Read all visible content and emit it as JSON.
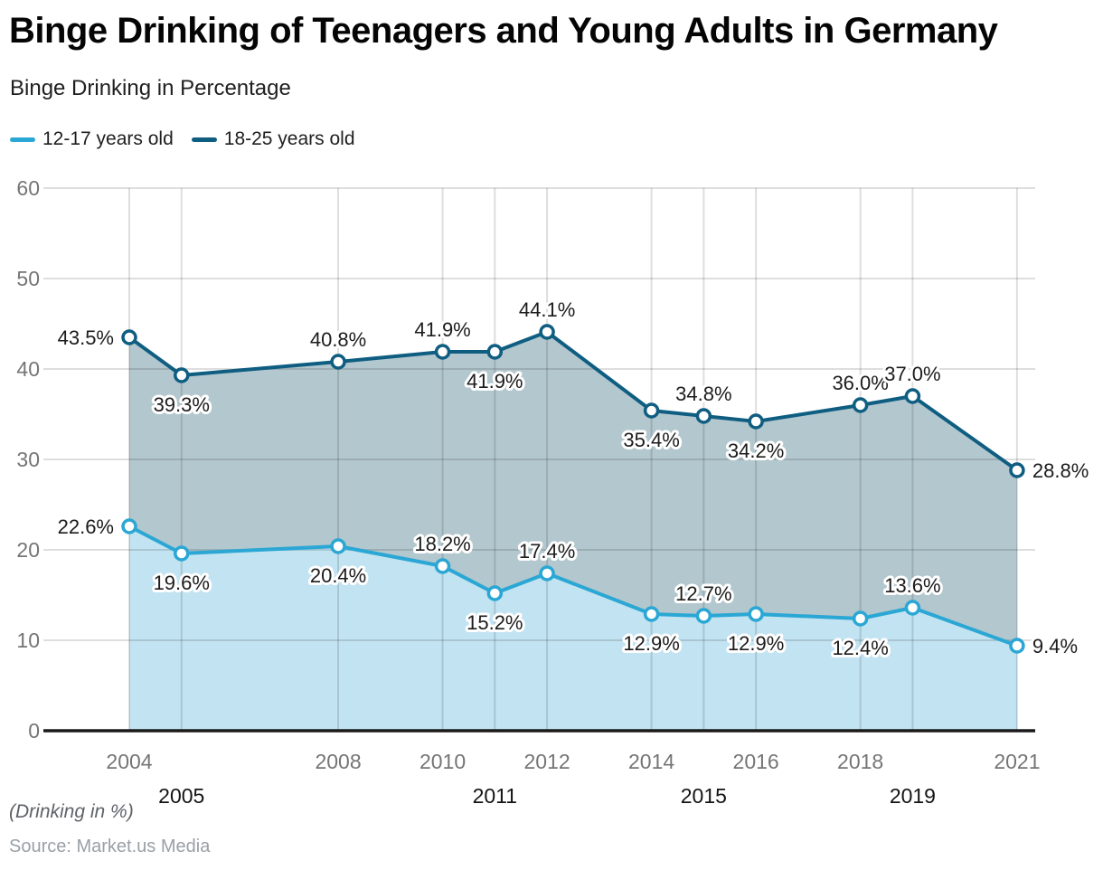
{
  "title": "Binge Drinking of Teenagers and Young Adults in Germany",
  "subtitle": "Binge Drinking in Percentage",
  "legend": [
    {
      "label": "12-17 years old",
      "color": "#2aa7d4"
    },
    {
      "label": "18-25 years old",
      "color": "#0f5e82"
    }
  ],
  "footnote": "(Drinking in %)",
  "source": "Source: Market.us Media",
  "colors": {
    "accent_light": "#2aa7d4",
    "accent_dark": "#0f5e82",
    "fill_light": "#c2e3f1",
    "fill_dark": "#b3c7ce",
    "grid": "rgba(0,0,0,0.13)",
    "axis": "#1a1a1a",
    "tick_gray": "#757575",
    "tick_black": "#141414",
    "data_label": "#1c1c1c"
  },
  "chart_data": {
    "type": "area",
    "title": "Binge Drinking of Teenagers and Young Adults in Germany",
    "xlabel": "",
    "ylabel": "Binge Drinking in Percentage",
    "x": [
      2004,
      2005,
      2008,
      2010,
      2011,
      2012,
      2014,
      2015,
      2016,
      2018,
      2019,
      2021
    ],
    "x_tick_rows": [
      1,
      2,
      1,
      1,
      2,
      1,
      1,
      2,
      1,
      1,
      2,
      1
    ],
    "yticks": [
      0,
      10,
      20,
      30,
      40,
      50,
      60
    ],
    "ylim": [
      0,
      60
    ],
    "grid": true,
    "legend_position": "top-left",
    "series": [
      {
        "name": "18-25 years old",
        "color": "#0f5e82",
        "fill": "#b3c7ce",
        "values": [
          43.5,
          39.3,
          40.8,
          41.9,
          41.9,
          44.1,
          35.4,
          34.8,
          34.2,
          36.0,
          37.0,
          28.8
        ],
        "labels": [
          "43.5%",
          "39.3%",
          "40.8%",
          "41.9%",
          "41.9%",
          "44.1%",
          "35.4%",
          "34.8%",
          "34.2%",
          "36.0%",
          "37.0%",
          "28.8%"
        ],
        "label_pos": [
          "left",
          "below",
          "above",
          "above",
          "below",
          "above",
          "below",
          "above",
          "below",
          "above",
          "above",
          "right"
        ]
      },
      {
        "name": "12-17 years old",
        "color": "#2aa7d4",
        "fill": "#c2e3f1",
        "values": [
          22.6,
          19.6,
          20.4,
          18.2,
          15.2,
          17.4,
          12.9,
          12.7,
          12.9,
          12.4,
          13.6,
          9.4
        ],
        "labels": [
          "22.6%",
          "19.6%",
          "20.4%",
          "18.2%",
          "15.2%",
          "17.4%",
          "12.9%",
          "12.7%",
          "12.9%",
          "12.4%",
          "13.6%",
          "9.4%"
        ],
        "label_pos": [
          "left",
          "below",
          "below",
          "above",
          "below",
          "above",
          "below",
          "above",
          "below",
          "below",
          "above",
          "right"
        ]
      }
    ]
  }
}
